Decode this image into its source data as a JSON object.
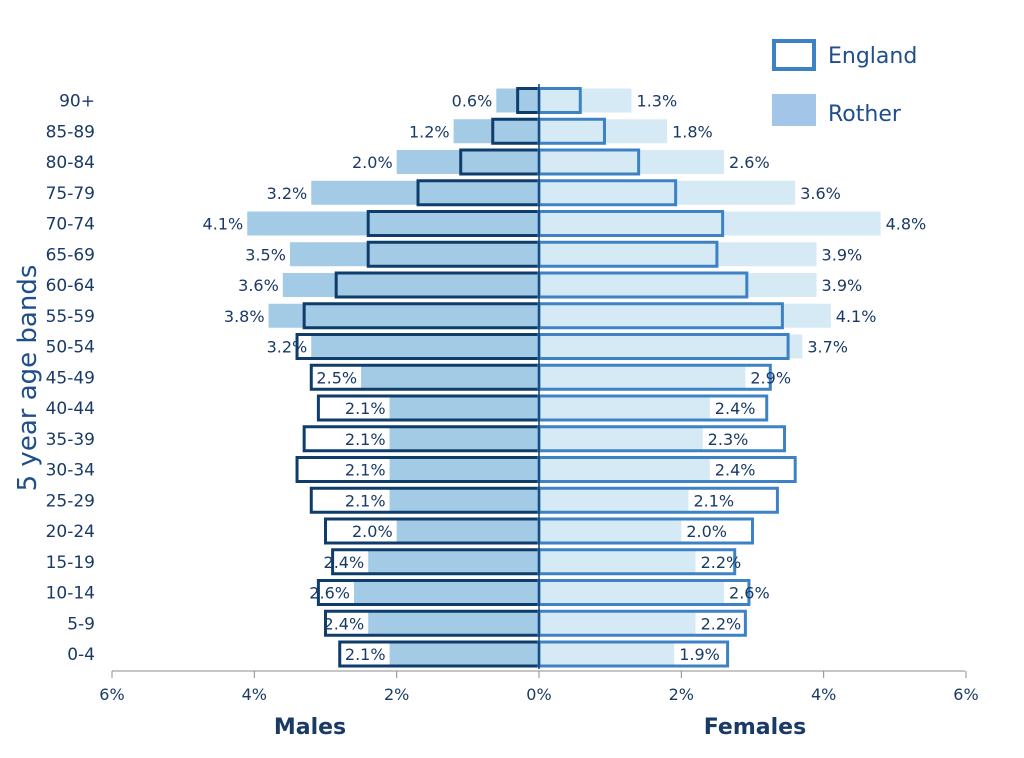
{
  "chart_data": {
    "type": "bar",
    "orientation": "horizontal-population-pyramid",
    "ylabel": "5 year age bands",
    "side_labels": {
      "left": "Males",
      "right": "Females"
    },
    "categories": [
      "0-4",
      "5-9",
      "10-14",
      "15-19",
      "20-24",
      "25-29",
      "30-34",
      "35-39",
      "40-44",
      "45-49",
      "50-54",
      "55-59",
      "60-64",
      "65-69",
      "70-74",
      "75-79",
      "80-84",
      "85-89",
      "90+"
    ],
    "x_ticks": [
      "6%",
      "4%",
      "2%",
      "0%",
      "2%",
      "4%",
      "6%"
    ],
    "xlim": [
      -6,
      6
    ],
    "legend": {
      "position": "top-right",
      "entries": [
        "England",
        "Rother"
      ]
    },
    "series": [
      {
        "name": "Rother",
        "style": "filled",
        "males": [
          2.1,
          2.4,
          2.6,
          2.4,
          2.0,
          2.1,
          2.1,
          2.1,
          2.1,
          2.5,
          3.2,
          3.8,
          3.6,
          3.5,
          4.1,
          3.2,
          2.0,
          1.2,
          0.6
        ],
        "females": [
          1.9,
          2.2,
          2.6,
          2.2,
          2.0,
          2.1,
          2.4,
          2.3,
          2.4,
          2.9,
          3.7,
          4.1,
          3.9,
          3.9,
          4.8,
          3.6,
          2.6,
          1.8,
          1.3
        ],
        "male_labels": [
          "2.1%",
          "2.4%",
          "2.6%",
          "2.4%",
          "2.0%",
          "2.1%",
          "2.1%",
          "2.1%",
          "2.1%",
          "2.5%",
          "3.2%",
          "3.8%",
          "3.6%",
          "3.5%",
          "4.1%",
          "3.2%",
          "2.0%",
          "1.2%",
          "0.6%"
        ],
        "female_labels": [
          "1.9%",
          "2.2%",
          "2.6%",
          "2.2%",
          "2.0%",
          "2.1%",
          "2.4%",
          "2.3%",
          "2.4%",
          "2.9%",
          "3.7%",
          "4.1%",
          "3.9%",
          "3.9%",
          "4.8%",
          "3.6%",
          "2.6%",
          "1.8%",
          "1.3%"
        ]
      },
      {
        "name": "England",
        "style": "outline",
        "males": [
          2.8,
          3.0,
          3.1,
          2.9,
          3.0,
          3.2,
          3.4,
          3.3,
          3.1,
          3.2,
          3.4,
          3.3,
          2.85,
          2.4,
          2.4,
          1.7,
          1.1,
          0.65,
          0.3
        ],
        "females": [
          2.65,
          2.9,
          2.95,
          2.75,
          3.0,
          3.35,
          3.6,
          3.45,
          3.2,
          3.25,
          3.5,
          3.42,
          2.92,
          2.5,
          2.58,
          1.92,
          1.4,
          0.92,
          0.58
        ]
      }
    ],
    "colors": {
      "rother_male": "#a3cbe6",
      "rother_female": "#d6eaf5",
      "england_male_stroke": "#0e3d6b",
      "england_female_stroke": "#3d82c4",
      "legend_fill": "#a3c6e8",
      "legend_stroke": "#3d82c4",
      "text": "#1a3a66",
      "axis": "#8c8c8c"
    }
  }
}
